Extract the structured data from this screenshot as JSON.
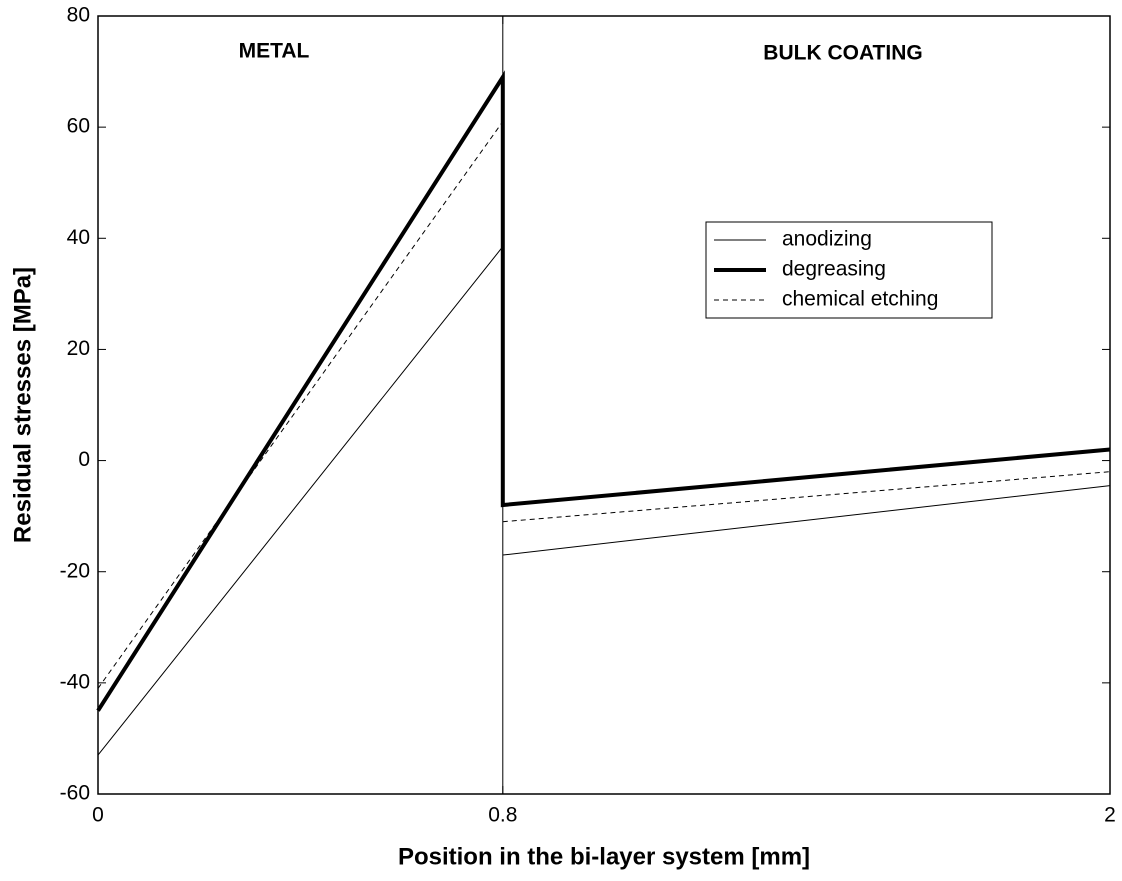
{
  "chart_data": {
    "type": "line",
    "xlabel": "Position in the bi-layer system [mm]",
    "ylabel": "Residual stresses [MPa]",
    "xlim": [
      0,
      2
    ],
    "xticks": [
      0,
      0.8,
      2
    ],
    "ylim": [
      -60,
      80
    ],
    "yticks": [
      -60,
      -40,
      -20,
      0,
      20,
      40,
      60,
      80
    ],
    "regions": [
      {
        "label": "METAL"
      },
      {
        "label": "BULK COATING"
      }
    ],
    "divider": 0.8,
    "legend": "right",
    "series": [
      {
        "name": "anodizing",
        "color": "#000000",
        "linewidth": 1,
        "style": "solid",
        "x": [
          0,
          0.8,
          0.8,
          0.8,
          2
        ],
        "values": [
          -53,
          38.5,
          null,
          -17,
          -4.5
        ]
      },
      {
        "name": "degreasing",
        "color": "#000000",
        "linewidth": 4,
        "style": "solid",
        "x": [
          0,
          0.8,
          0.8,
          2
        ],
        "values": [
          -45,
          69,
          -8,
          2
        ]
      },
      {
        "name": "chemical etching",
        "color": "#000000",
        "linewidth": 1,
        "style": "dashed",
        "x": [
          0,
          0.8,
          0.8,
          0.8,
          2
        ],
        "values": [
          -41,
          61,
          null,
          -11,
          -2
        ]
      }
    ]
  }
}
